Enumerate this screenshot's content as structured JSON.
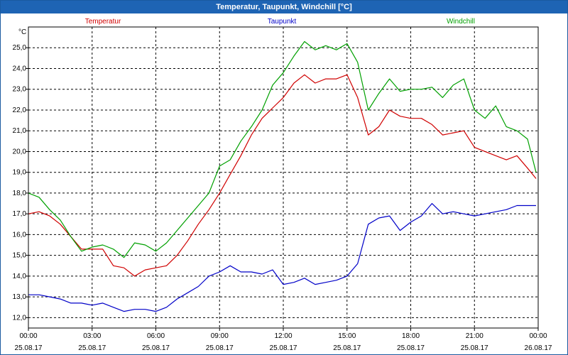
{
  "window": {
    "title": "Temperatur, Taupunkt, Windchill [°C]"
  },
  "colors": {
    "temperature": "#d00000",
    "dewpoint": "#0000c8",
    "windchill": "#00a000",
    "grid": "#000000",
    "title_bg": "#1e64b4"
  },
  "chart_data": {
    "type": "line",
    "title": "Temperatur, Taupunkt, Windchill [°C]",
    "ylabel": "°C",
    "xlabel": "",
    "ylim": [
      11.5,
      26.0
    ],
    "xlim": [
      0,
      24
    ],
    "grid": true,
    "yticks": [
      12.0,
      13.0,
      14.0,
      15.0,
      16.0,
      17.0,
      18.0,
      19.0,
      20.0,
      21.0,
      22.0,
      23.0,
      24.0,
      25.0
    ],
    "ytick_labels": [
      "12,0",
      "13,0",
      "14,0",
      "15,0",
      "16,0",
      "17,0",
      "18,0",
      "19,0",
      "20,0",
      "21,0",
      "22,0",
      "23,0",
      "24,0",
      "25,0"
    ],
    "xticks": [
      {
        "x": 0,
        "time": "00:00",
        "date": "25.08.17"
      },
      {
        "x": 3,
        "time": "03:00",
        "date": "25.08.17"
      },
      {
        "x": 6,
        "time": "06:00",
        "date": "25.08.17"
      },
      {
        "x": 9,
        "time": "09:00",
        "date": "25.08.17"
      },
      {
        "x": 12,
        "time": "12:00",
        "date": "25.08.17"
      },
      {
        "x": 15,
        "time": "15:00",
        "date": "25.08.17"
      },
      {
        "x": 18,
        "time": "18:00",
        "date": "25.08.17"
      },
      {
        "x": 21,
        "time": "21:00",
        "date": "25.08.17"
      },
      {
        "x": 24,
        "time": "00:00",
        "date": "26.08.17"
      }
    ],
    "series": [
      {
        "name": "Temperatur",
        "legend_position": "left",
        "x": [
          0,
          0.5,
          1,
          1.5,
          2,
          2.5,
          3,
          3.5,
          4,
          4.5,
          5,
          5.5,
          6,
          6.5,
          7,
          7.5,
          8,
          8.5,
          9,
          9.5,
          10,
          10.5,
          11,
          11.5,
          12,
          12.5,
          13,
          13.5,
          14,
          14.5,
          15,
          15.5,
          16,
          16.5,
          17,
          17.5,
          18,
          18.5,
          19,
          19.5,
          20,
          20.5,
          21,
          21.5,
          22,
          22.5,
          23,
          23.5,
          23.9
        ],
        "y": [
          17.0,
          17.1,
          16.9,
          16.5,
          15.9,
          15.3,
          15.3,
          15.3,
          14.5,
          14.4,
          14.0,
          14.3,
          14.4,
          14.5,
          15.0,
          15.7,
          16.5,
          17.2,
          18.0,
          18.9,
          19.8,
          20.8,
          21.6,
          22.1,
          22.6,
          23.3,
          23.7,
          23.3,
          23.5,
          23.5,
          23.7,
          22.6,
          20.8,
          21.2,
          22.0,
          21.7,
          21.6,
          21.6,
          21.3,
          20.8,
          20.9,
          21.0,
          20.2,
          20.0,
          19.8,
          19.6,
          19.8,
          19.2,
          18.7
        ]
      },
      {
        "name": "Taupunkt",
        "legend_position": "center",
        "x": [
          0,
          0.5,
          1,
          1.5,
          2,
          2.5,
          3,
          3.5,
          4,
          4.5,
          5,
          5.5,
          6,
          6.5,
          7,
          7.5,
          8,
          8.5,
          9,
          9.5,
          10,
          10.5,
          11,
          11.5,
          12,
          12.5,
          13,
          13.5,
          14,
          14.5,
          15,
          15.5,
          16,
          16.5,
          17,
          17.5,
          18,
          18.5,
          19,
          19.5,
          20,
          20.5,
          21,
          21.5,
          22,
          22.5,
          23,
          23.5,
          23.9
        ],
        "y": [
          13.1,
          13.1,
          13.0,
          12.9,
          12.7,
          12.7,
          12.6,
          12.7,
          12.5,
          12.3,
          12.4,
          12.4,
          12.3,
          12.5,
          12.9,
          13.2,
          13.5,
          14.0,
          14.2,
          14.5,
          14.2,
          14.2,
          14.1,
          14.3,
          13.6,
          13.7,
          13.9,
          13.6,
          13.7,
          13.8,
          14.0,
          14.6,
          16.5,
          16.8,
          16.9,
          16.2,
          16.6,
          16.9,
          17.5,
          17.0,
          17.1,
          17.0,
          16.9,
          17.0,
          17.1,
          17.2,
          17.4,
          17.4,
          17.4
        ]
      },
      {
        "name": "Windchill",
        "legend_position": "right",
        "x": [
          0,
          0.5,
          1,
          1.5,
          2,
          2.5,
          3,
          3.5,
          4,
          4.5,
          5,
          5.5,
          6,
          6.5,
          7,
          7.5,
          8,
          8.5,
          9,
          9.5,
          10,
          10.5,
          11,
          11.5,
          12,
          12.5,
          13,
          13.5,
          14,
          14.5,
          15,
          15.5,
          16,
          16.5,
          17,
          17.5,
          18,
          18.5,
          19,
          19.5,
          20,
          20.5,
          21,
          21.5,
          22,
          22.5,
          23,
          23.5,
          23.9
        ],
        "y": [
          18.0,
          17.8,
          17.2,
          16.7,
          15.9,
          15.2,
          15.4,
          15.5,
          15.3,
          14.9,
          15.6,
          15.5,
          15.2,
          15.6,
          16.2,
          16.8,
          17.4,
          18.0,
          19.3,
          19.6,
          20.5,
          21.2,
          22.0,
          23.2,
          23.8,
          24.6,
          25.3,
          24.9,
          25.1,
          24.9,
          25.2,
          24.3,
          22.0,
          22.8,
          23.5,
          22.9,
          23.0,
          23.0,
          23.1,
          22.6,
          23.2,
          23.5,
          22.0,
          21.6,
          22.2,
          21.2,
          21.0,
          20.6,
          19.0
        ]
      }
    ]
  }
}
